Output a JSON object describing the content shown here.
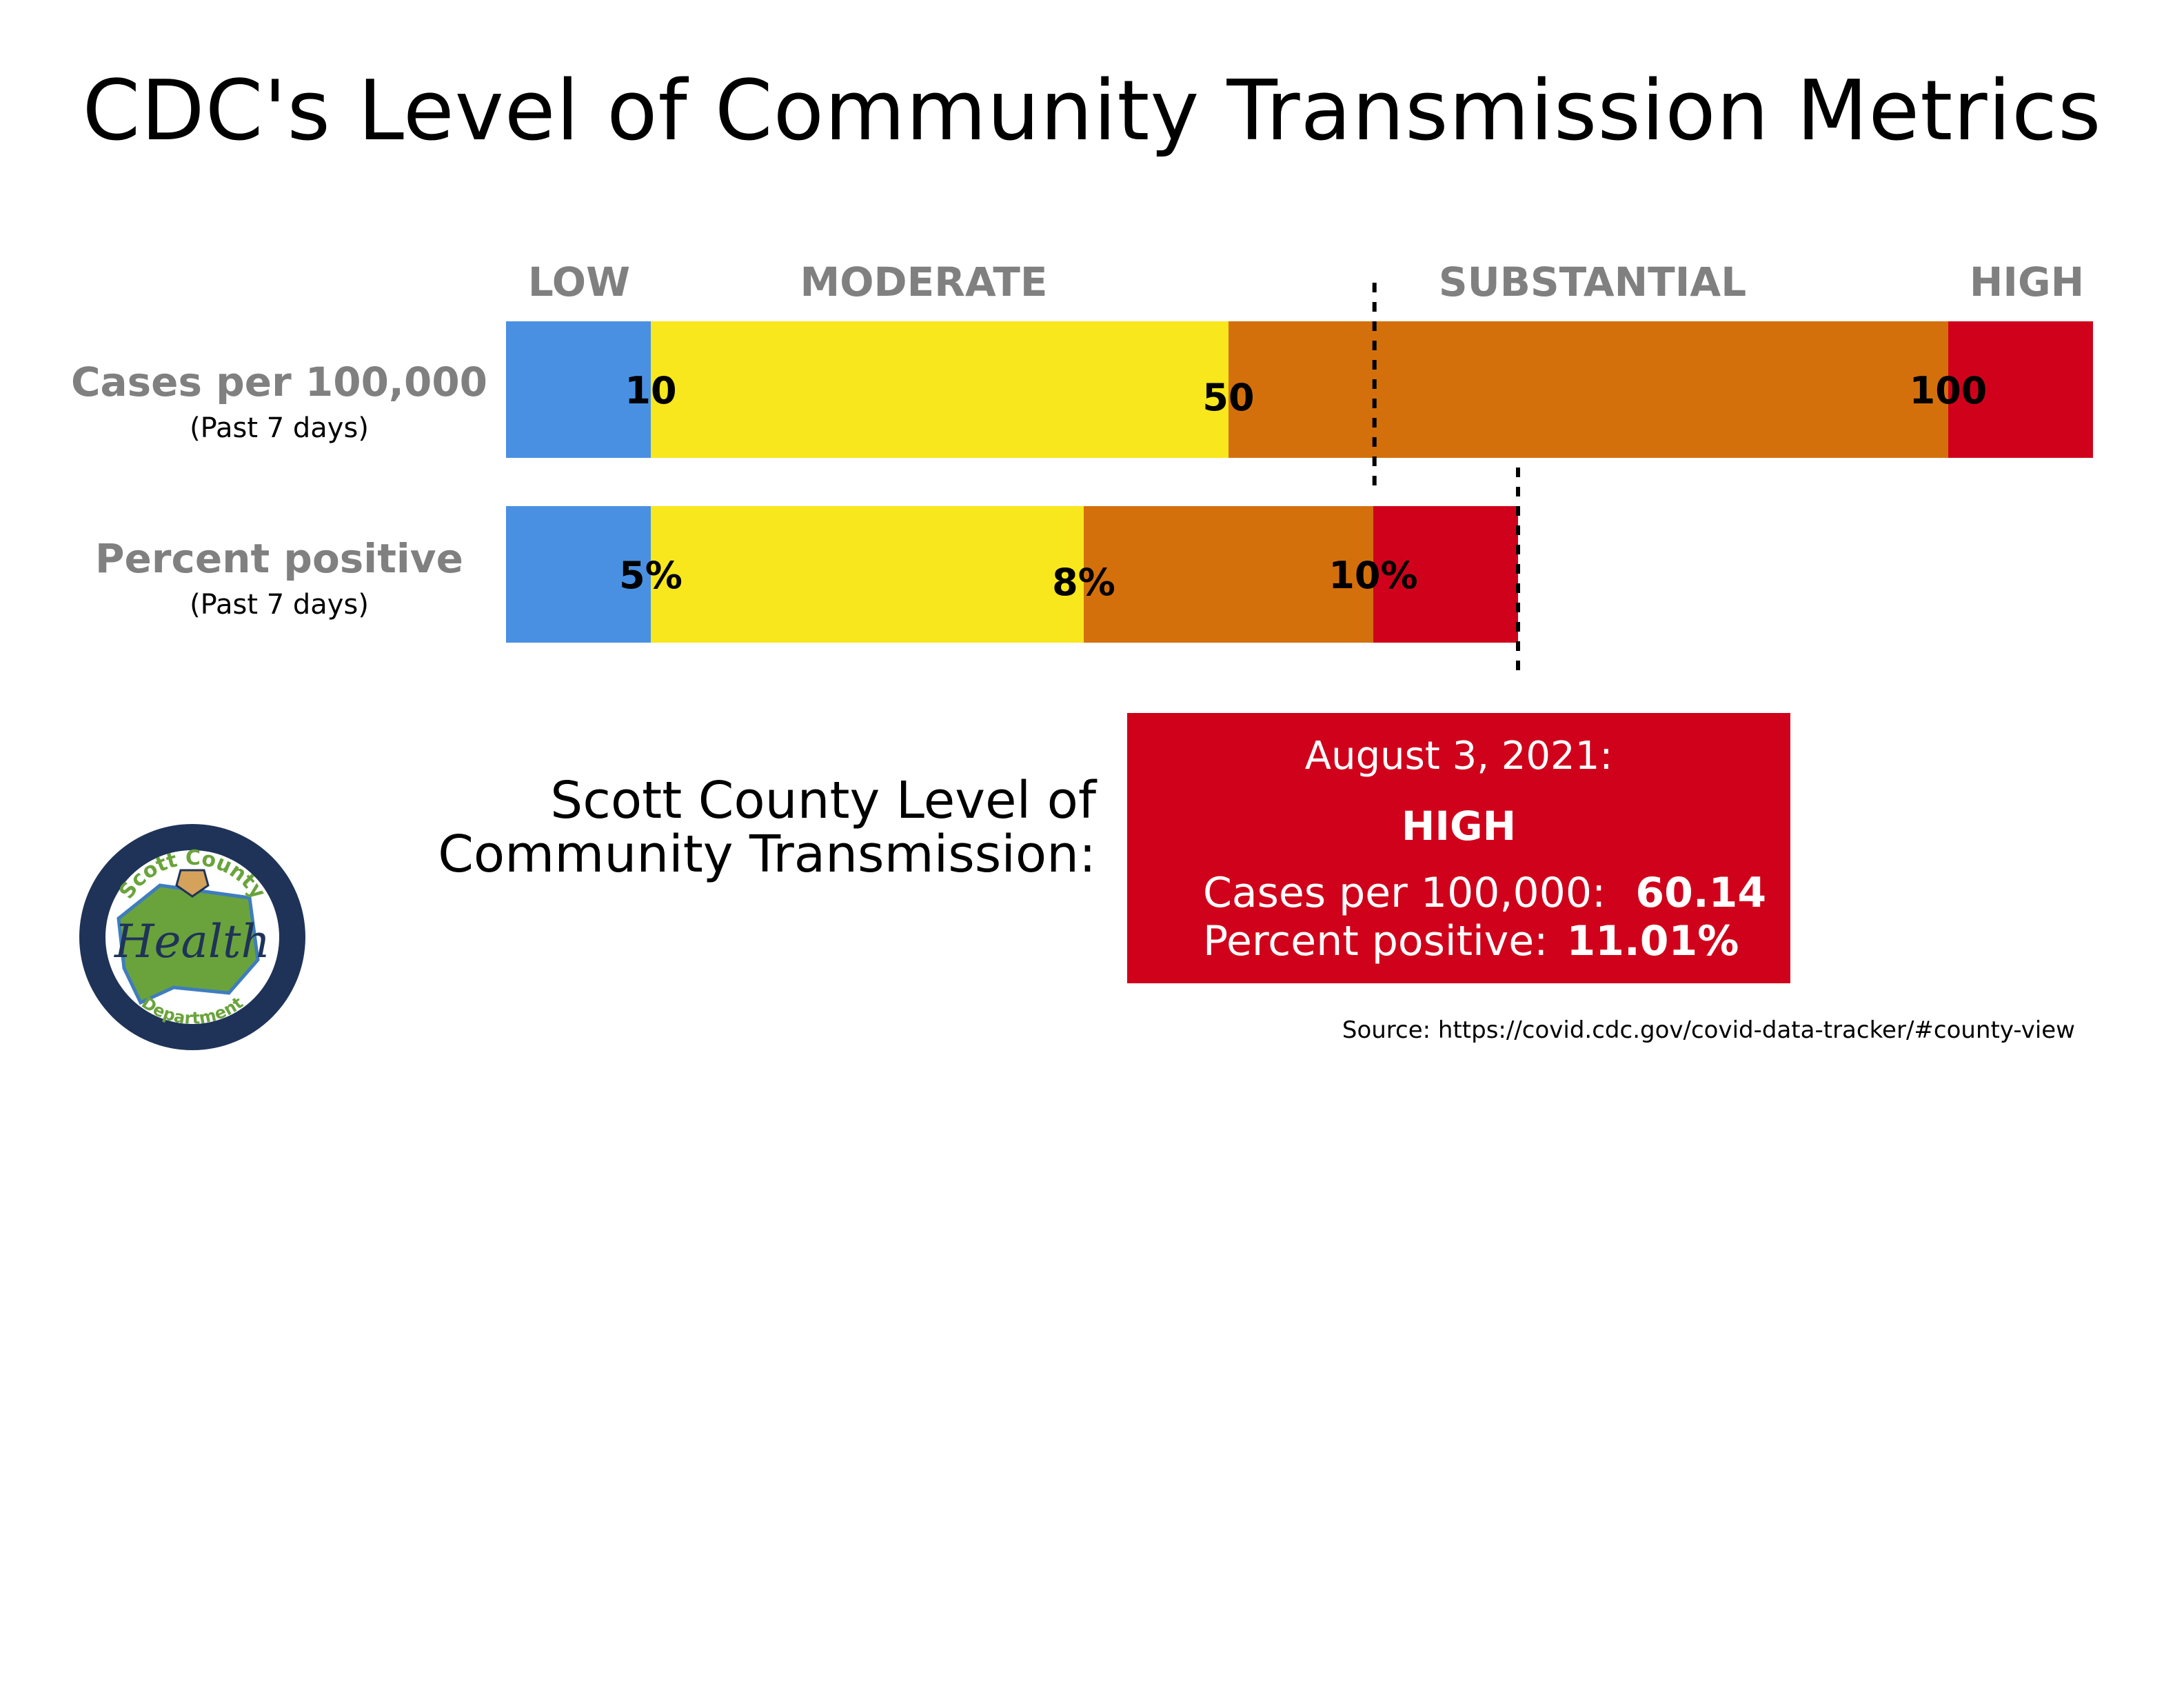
{
  "title": "CDC's Level of Community Transmission Metrics",
  "categories": [
    "LOW",
    "MODERATE",
    "SUBSTANTIAL",
    "HIGH"
  ],
  "colors": {
    "low": "#4a90e2",
    "moderate": "#f8e71c",
    "substantial": "#d4700c",
    "high": "#d0021b",
    "logo_ring": "#1f3358",
    "logo_green": "#6aa33c"
  },
  "chart_data": {
    "type": "bar",
    "orientation": "horizontal-stacked",
    "title": "CDC's Level of Community Transmission Metrics",
    "legend": [
      "LOW",
      "MODERATE",
      "SUBSTANTIAL",
      "HIGH"
    ],
    "rows": [
      {
        "label": "Cases per 100,000",
        "sublabel": "(Past 7 days)",
        "thresholds": [
          10,
          50,
          100
        ],
        "threshold_labels": [
          "10",
          "50",
          "100"
        ],
        "segment_ends": [
          10,
          50,
          100,
          110
        ],
        "current_value": 60.14
      },
      {
        "label": "Percent positive",
        "sublabel": "(Past 7 days)",
        "thresholds": [
          5,
          8,
          10
        ],
        "threshold_labels": [
          "5%",
          "8%",
          "10%"
        ],
        "segment_ends": [
          5,
          8,
          10,
          11
        ],
        "current_value": 11.01
      }
    ]
  },
  "county": {
    "label_line1": "Scott County Level of",
    "label_line2": "Community Transmission:",
    "date": "August 3, 2021:",
    "level": "HIGH",
    "cases_label": "Cases per 100,000:",
    "cases_value": "60.14",
    "percent_label": "Percent positive:",
    "percent_value": "11.01%"
  },
  "source": "Source:  https://covid.cdc.gov/covid-data-tracker/#county-view",
  "logo": {
    "top_text": "Scott County",
    "center_text": "Health",
    "bottom_text": "Department"
  }
}
